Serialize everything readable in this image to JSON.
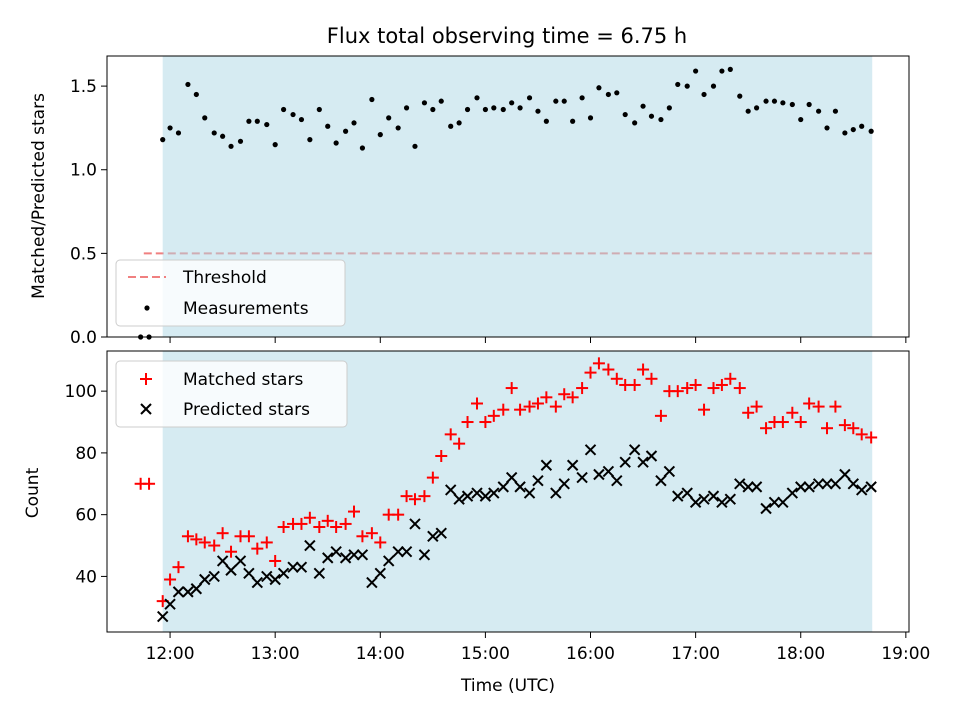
{
  "chart_data": [
    {
      "type": "scatter",
      "title": "Flux total observing time = 6.75 h",
      "xlabel": "",
      "ylabel": "Matched/Predicted stars",
      "xlim": [
        11.4,
        19.03
      ],
      "ylim": [
        0,
        1.68
      ],
      "yticks": [
        0,
        0.5,
        1.0,
        1.5
      ],
      "ytick_labels": [
        "0.0",
        "0.5",
        "1.0",
        "1.5"
      ],
      "xticks": [
        12,
        13,
        14,
        15,
        16,
        17,
        18,
        19
      ],
      "observing_window": [
        11.93,
        18.68
      ],
      "threshold": {
        "name": "Threshold",
        "value": 0.5,
        "x_start": 11.75,
        "x_end": 18.68,
        "color": "#f08080"
      },
      "legend": [
        "Threshold",
        "Measurements"
      ],
      "legend_position": "lower-left",
      "series": [
        {
          "name": "Measurements",
          "color": "#000000",
          "marker": "dot",
          "x": [
            11.72,
            11.8,
            11.93,
            12.0,
            12.08,
            12.17,
            12.25,
            12.33,
            12.42,
            12.5,
            12.58,
            12.67,
            12.75,
            12.83,
            12.92,
            13.0,
            13.08,
            13.17,
            13.25,
            13.33,
            13.42,
            13.5,
            13.58,
            13.67,
            13.75,
            13.83,
            13.92,
            14.0,
            14.08,
            14.17,
            14.25,
            14.33,
            14.42,
            14.5,
            14.58,
            14.67,
            14.75,
            14.83,
            14.92,
            15.0,
            15.08,
            15.17,
            15.25,
            15.33,
            15.42,
            15.5,
            15.58,
            15.67,
            15.75,
            15.83,
            15.92,
            16.0,
            16.08,
            16.17,
            16.25,
            16.33,
            16.42,
            16.5,
            16.58,
            16.67,
            16.75,
            16.83,
            16.92,
            17.0,
            17.08,
            17.17,
            17.25,
            17.33,
            17.42,
            17.5,
            17.58,
            17.67,
            17.75,
            17.83,
            17.92,
            18.0,
            18.08,
            18.17,
            18.25,
            18.33,
            18.42,
            18.5,
            18.58,
            18.67
          ],
          "y": [
            0.0,
            0.0,
            1.18,
            1.25,
            1.22,
            1.51,
            1.45,
            1.31,
            1.22,
            1.2,
            1.14,
            1.17,
            1.29,
            1.29,
            1.27,
            1.15,
            1.36,
            1.33,
            1.3,
            1.18,
            1.36,
            1.26,
            1.16,
            1.23,
            1.28,
            1.13,
            1.42,
            1.21,
            1.31,
            1.25,
            1.37,
            1.14,
            1.4,
            1.36,
            1.41,
            1.26,
            1.28,
            1.36,
            1.43,
            1.36,
            1.37,
            1.36,
            1.4,
            1.37,
            1.43,
            1.35,
            1.29,
            1.41,
            1.41,
            1.29,
            1.43,
            1.31,
            1.49,
            1.45,
            1.46,
            1.33,
            1.28,
            1.38,
            1.32,
            1.3,
            1.37,
            1.51,
            1.5,
            1.59,
            1.45,
            1.5,
            1.59,
            1.6,
            1.44,
            1.35,
            1.37,
            1.41,
            1.41,
            1.4,
            1.39,
            1.3,
            1.39,
            1.35,
            1.25,
            1.35,
            1.22,
            1.24,
            1.26,
            1.23
          ]
        }
      ]
    },
    {
      "type": "scatter",
      "title": "",
      "xlabel": "Time (UTC)",
      "ylabel": "Count",
      "xlim": [
        11.4,
        19.03
      ],
      "ylim": [
        22,
        113
      ],
      "yticks": [
        40,
        60,
        80,
        100
      ],
      "ytick_labels": [
        "40",
        "60",
        "80",
        "100"
      ],
      "xticks": [
        12,
        13,
        14,
        15,
        16,
        17,
        18,
        19
      ],
      "xtick_labels": [
        "12:00",
        "13:00",
        "14:00",
        "15:00",
        "16:00",
        "17:00",
        "18:00",
        "19:00"
      ],
      "observing_window": [
        11.93,
        18.68
      ],
      "legend": [
        "Matched stars",
        "Predicted stars"
      ],
      "legend_position": "top-left",
      "series": [
        {
          "name": "Matched stars",
          "color": "#ff0000",
          "marker": "plus",
          "x": [
            11.72,
            11.8,
            11.93,
            12.0,
            12.08,
            12.17,
            12.25,
            12.33,
            12.42,
            12.5,
            12.58,
            12.67,
            12.75,
            12.83,
            12.92,
            13.0,
            13.08,
            13.17,
            13.25,
            13.33,
            13.42,
            13.5,
            13.58,
            13.67,
            13.75,
            13.83,
            13.92,
            14.0,
            14.08,
            14.17,
            14.25,
            14.33,
            14.42,
            14.5,
            14.58,
            14.67,
            14.75,
            14.83,
            14.92,
            15.0,
            15.08,
            15.17,
            15.25,
            15.33,
            15.42,
            15.5,
            15.58,
            15.67,
            15.75,
            15.83,
            15.92,
            16.0,
            16.08,
            16.17,
            16.25,
            16.33,
            16.42,
            16.5,
            16.58,
            16.67,
            16.75,
            16.83,
            16.92,
            17.0,
            17.08,
            17.17,
            17.25,
            17.33,
            17.42,
            17.5,
            17.58,
            17.67,
            17.75,
            17.83,
            17.92,
            18.0,
            18.08,
            18.17,
            18.25,
            18.33,
            18.42,
            18.5,
            18.58,
            18.67
          ],
          "y": [
            70,
            70,
            32,
            39,
            43,
            53,
            52,
            51,
            50,
            54,
            48,
            53,
            53,
            49,
            51,
            45,
            56,
            57,
            57,
            59,
            56,
            58,
            56,
            57,
            61,
            53,
            54,
            51,
            60,
            60,
            66,
            65,
            66,
            72,
            79,
            86,
            83,
            90,
            96,
            90,
            92,
            94,
            101,
            94,
            95,
            96,
            98,
            95,
            99,
            98,
            101,
            106,
            109,
            107,
            104,
            102,
            102,
            107,
            104,
            92,
            100,
            100,
            101,
            102,
            94,
            101,
            102,
            104,
            101,
            93,
            95,
            88,
            90,
            90,
            93,
            90,
            96,
            95,
            88,
            95,
            89,
            88,
            86,
            85
          ]
        },
        {
          "name": "Predicted stars",
          "color": "#000000",
          "marker": "cross",
          "x": [
            11.93,
            12.0,
            12.08,
            12.17,
            12.25,
            12.33,
            12.42,
            12.5,
            12.58,
            12.67,
            12.75,
            12.83,
            12.92,
            13.0,
            13.08,
            13.17,
            13.25,
            13.33,
            13.42,
            13.5,
            13.58,
            13.67,
            13.75,
            13.83,
            13.92,
            14.0,
            14.08,
            14.17,
            14.25,
            14.33,
            14.42,
            14.5,
            14.58,
            14.67,
            14.75,
            14.83,
            14.92,
            15.0,
            15.08,
            15.17,
            15.25,
            15.33,
            15.42,
            15.5,
            15.58,
            15.67,
            15.75,
            15.83,
            15.92,
            16.0,
            16.08,
            16.17,
            16.25,
            16.33,
            16.42,
            16.5,
            16.58,
            16.67,
            16.75,
            16.83,
            16.92,
            17.0,
            17.08,
            17.17,
            17.25,
            17.33,
            17.42,
            17.5,
            17.58,
            17.67,
            17.75,
            17.83,
            17.92,
            18.0,
            18.08,
            18.17,
            18.25,
            18.33,
            18.42,
            18.5,
            18.58,
            18.67
          ],
          "y": [
            27,
            31,
            35,
            35,
            36,
            39,
            40,
            45,
            42,
            45,
            41,
            38,
            40,
            39,
            41,
            43,
            43,
            50,
            41,
            46,
            48,
            46,
            47,
            47,
            38,
            41,
            45,
            48,
            48,
            57,
            47,
            53,
            54,
            68,
            65,
            66,
            67,
            66,
            67,
            69,
            72,
            69,
            67,
            71,
            76,
            67,
            70,
            76,
            72,
            81,
            73,
            74,
            71,
            77,
            81,
            77,
            79,
            71,
            74,
            66,
            67,
            64,
            65,
            66,
            64,
            65,
            70,
            69,
            69,
            62,
            64,
            64,
            67,
            69,
            69,
            70,
            70,
            70,
            73,
            70,
            68,
            69
          ]
        }
      ]
    }
  ]
}
